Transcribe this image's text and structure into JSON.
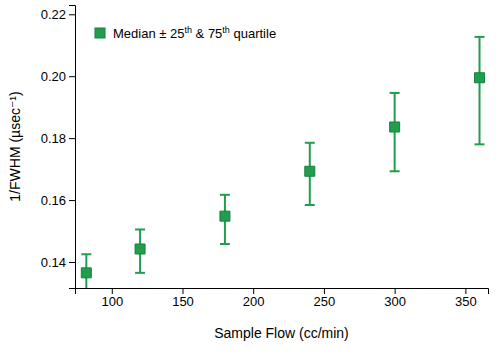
{
  "chart_data": {
    "type": "scatter",
    "x_label": "Sample Flow (cc/min)",
    "y_label": "1/FWHM (µsec⁻¹)",
    "x": [
      82,
      120,
      180,
      240,
      300,
      360
    ],
    "series": [
      {
        "name": "Median ± 25th & 75th quartile",
        "color": "#1f9e4e",
        "marker": "square",
        "values": [
          0.1365,
          0.1442,
          0.1548,
          0.1693,
          0.1836,
          0.1995
        ],
        "lower": [
          0.1302,
          0.1365,
          0.1458,
          0.1584,
          0.1693,
          0.178
        ],
        "upper": [
          0.1425,
          0.1505,
          0.1617,
          0.1785,
          0.1946,
          0.2127
        ]
      }
    ],
    "xlim": [
      74,
      366
    ],
    "xticks": [
      100,
      150,
      200,
      250,
      300,
      350
    ],
    "ylim": [
      0.1316,
      0.223
    ],
    "yticks": [
      0.14,
      0.16,
      0.18,
      {
        "value": 0.2,
        "label": "0.20"
      },
      0.22
    ],
    "legend": "upper left",
    "grid": false
  }
}
